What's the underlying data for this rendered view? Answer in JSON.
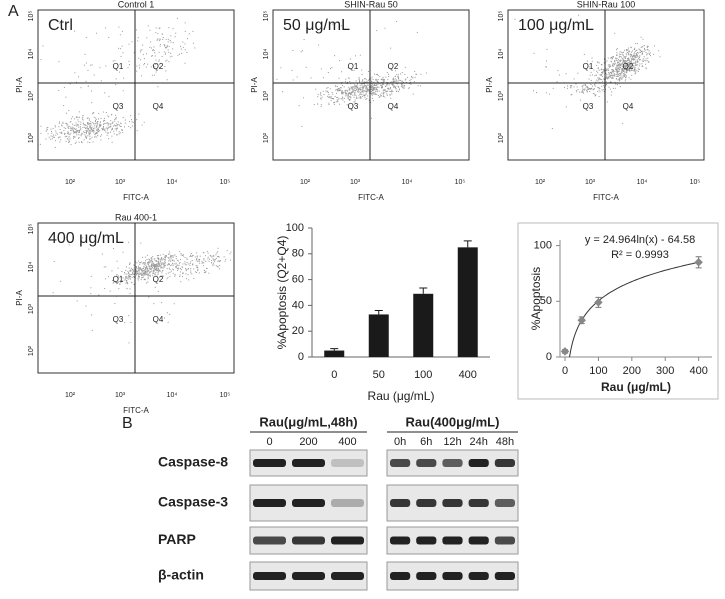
{
  "panel_labels": [
    "A",
    "B"
  ],
  "flow_plots": [
    {
      "title": "Control 1",
      "label": "Ctrl"
    },
    {
      "title": "SHIN-Rau 50",
      "label": "50 μg/mL"
    },
    {
      "title": "SHIN-Rau 100",
      "label": "100 μg/mL"
    },
    {
      "title": "Rau 400-1",
      "label": "400 μg/mL"
    }
  ],
  "flow_axes": {
    "x_label": "FITC-A",
    "y_label": "PI-A",
    "tick_labels": [
      "10²",
      "10³",
      "10⁴",
      "10⁵"
    ],
    "quadrants": [
      "Q1",
      "Q2",
      "Q3",
      "Q4"
    ]
  },
  "chart_data": [
    {
      "type": "bar",
      "y_label": "%Apoptosis (Q2+Q4)",
      "x_label": "Rau (μg/mL)",
      "categories": [
        "0",
        "50",
        "100",
        "400"
      ],
      "values": [
        5,
        33,
        49,
        85
      ],
      "errors": [
        1.5,
        3,
        4.5,
        5
      ],
      "color": "#1a1a1a",
      "ylim": [
        0,
        100
      ],
      "yticks": [
        0,
        20,
        40,
        60,
        80,
        100
      ]
    },
    {
      "type": "scatter",
      "y_label": "%Apoptosis",
      "x_label": "Rau (μg/mL)",
      "x": [
        0,
        50,
        100,
        400
      ],
      "values": [
        5,
        33,
        49,
        85
      ],
      "errors": [
        1.5,
        3,
        4.5,
        5
      ],
      "color": "#888888",
      "xlim": [
        -15,
        440
      ],
      "xticks": [
        0,
        100,
        200,
        300,
        400
      ],
      "ylim": [
        0,
        105
      ],
      "yticks": [
        0,
        50,
        100
      ],
      "annotations": [
        "y = 24.964ln(x) - 64.58",
        "R² = 0.9993"
      ],
      "fit": {
        "coef": 24.964,
        "intercept": -64.58
      }
    }
  ],
  "western_blot": {
    "groups": [
      {
        "title": "Rau(μg/mL,48h)",
        "lanes": [
          "0",
          "200",
          "400"
        ]
      },
      {
        "title": "Rau(400μg/mL)",
        "lanes": [
          "0h",
          "6h",
          "12h",
          "24h",
          "48h"
        ]
      }
    ],
    "proteins": [
      "Caspase-8",
      "Caspase-3",
      "PARP",
      "β-actin"
    ]
  }
}
